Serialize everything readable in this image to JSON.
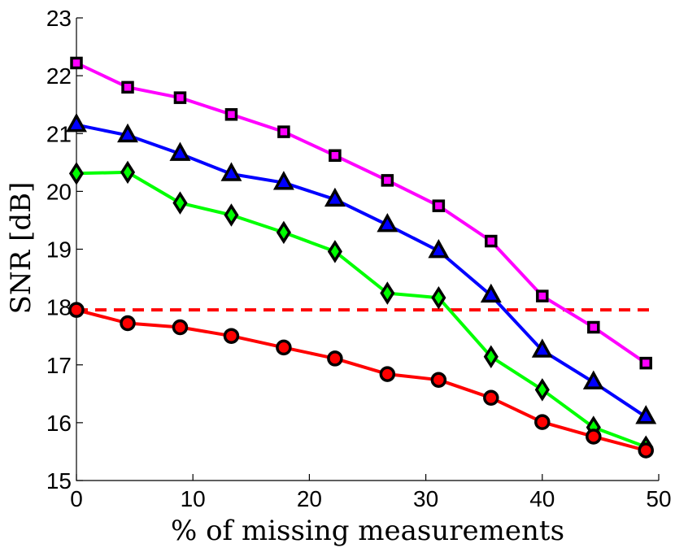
{
  "chart_data": {
    "type": "line",
    "xlabel": "% of missing measurements",
    "ylabel": "SNR [dB]",
    "xlim": [
      0,
      50
    ],
    "ylim": [
      15,
      23
    ],
    "xticks": [
      0,
      10,
      20,
      30,
      40,
      50
    ],
    "yticks": [
      15,
      16,
      17,
      18,
      19,
      20,
      21,
      22,
      23
    ],
    "grid": false,
    "legend": "none",
    "x": [
      0,
      4.4,
      8.9,
      13.3,
      17.8,
      22.2,
      26.7,
      31.1,
      35.6,
      40,
      44.4,
      48.9
    ],
    "reference_line": {
      "y": 17.95,
      "color": "#ff0000",
      "style": "dashed"
    },
    "series": [
      {
        "marker": "square",
        "color": "#ff00ff",
        "values": [
          22.22,
          21.8,
          21.62,
          21.33,
          21.03,
          20.62,
          20.19,
          19.75,
          19.14,
          18.19,
          17.65,
          17.03
        ]
      },
      {
        "marker": "triangle",
        "color": "#0000ff",
        "values": [
          21.15,
          20.97,
          20.65,
          20.3,
          20.15,
          19.86,
          19.42,
          18.97,
          18.2,
          17.25,
          16.7,
          16.1
        ]
      },
      {
        "marker": "diamond",
        "color": "#00ff00",
        "values": [
          20.31,
          20.33,
          19.8,
          19.59,
          19.29,
          18.96,
          18.24,
          18.16,
          17.14,
          16.57,
          15.92,
          15.58
        ]
      },
      {
        "marker": "circle",
        "color": "#ff0000",
        "values": [
          17.95,
          17.72,
          17.65,
          17.5,
          17.3,
          17.11,
          16.84,
          16.74,
          16.43,
          16.01,
          15.76,
          15.52
        ]
      }
    ]
  }
}
